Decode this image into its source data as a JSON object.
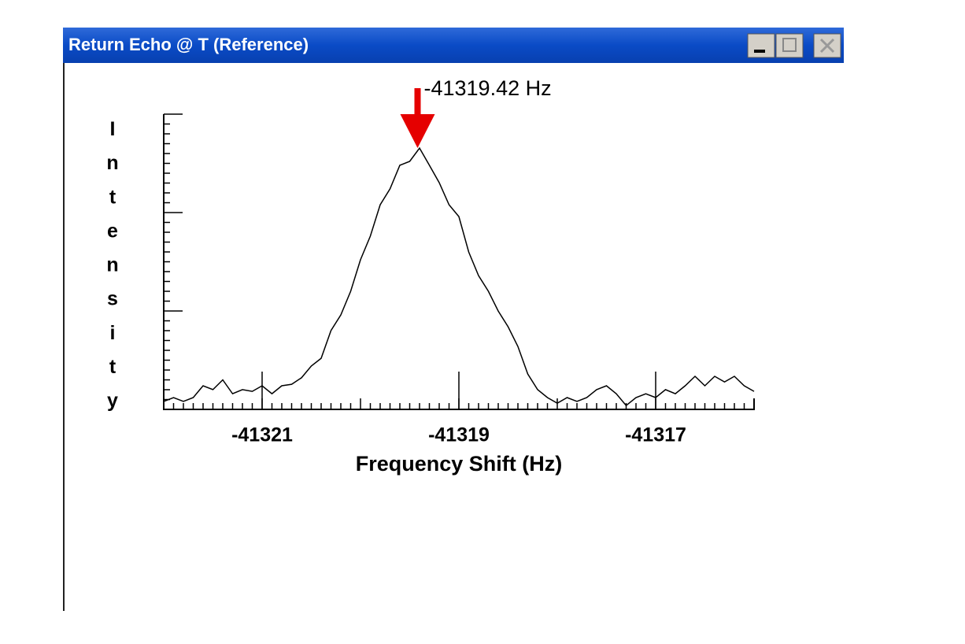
{
  "window": {
    "title": "Return Echo @ T (Reference)"
  },
  "chart_data": {
    "type": "line",
    "xlabel": "Frequency Shift (Hz)",
    "ylabel": "Intensity",
    "annotation": {
      "label": "-41319.42 Hz",
      "x": -41319.42
    },
    "xlim": [
      -41322,
      -41316
    ],
    "ylim": [
      0,
      100
    ],
    "xticks": [
      -41321,
      -41319,
      -41317
    ],
    "color": "#000000",
    "x": [
      -41322.0,
      -41321.9,
      -41321.8,
      -41321.7,
      -41321.6,
      -41321.5,
      -41321.4,
      -41321.3,
      -41321.2,
      -41321.1,
      -41321.0,
      -41320.9,
      -41320.8,
      -41320.7,
      -41320.6,
      -41320.5,
      -41320.4,
      -41320.3,
      -41320.2,
      -41320.1,
      -41320.0,
      -41319.9,
      -41319.8,
      -41319.7,
      -41319.6,
      -41319.5,
      -41319.4,
      -41319.3,
      -41319.2,
      -41319.1,
      -41319.0,
      -41318.9,
      -41318.8,
      -41318.7,
      -41318.6,
      -41318.5,
      -41318.4,
      -41318.3,
      -41318.2,
      -41318.1,
      -41318.0,
      -41317.9,
      -41317.8,
      -41317.7,
      -41317.6,
      -41317.5,
      -41317.4,
      -41317.3,
      -41317.2,
      -41317.1,
      -41317.0,
      -41316.9,
      -41316.8,
      -41316.7,
      -41316.6,
      -41316.5,
      -41316.4,
      -41316.3,
      -41316.2,
      -41316.1,
      -41316.0
    ],
    "values": [
      2.7,
      4,
      2.7,
      4,
      8,
      6.7,
      10,
      5.3,
      6.7,
      6.1,
      8,
      5.3,
      8,
      8.5,
      10.7,
      14.7,
      17.3,
      26.7,
      32,
      40,
      50.7,
      58.7,
      69.3,
      74.7,
      82.7,
      84,
      88.5,
      82.7,
      76.8,
      69.3,
      65.3,
      53.3,
      45.3,
      40,
      33.3,
      28,
      21.3,
      12,
      6.7,
      4,
      2.1,
      4,
      2.7,
      4,
      6.7,
      8,
      5.3,
      1.3,
      4,
      5.3,
      4,
      6.7,
      5.3,
      8,
      11.2,
      8,
      11.2,
      9.3,
      11.2,
      8,
      6.1
    ]
  }
}
